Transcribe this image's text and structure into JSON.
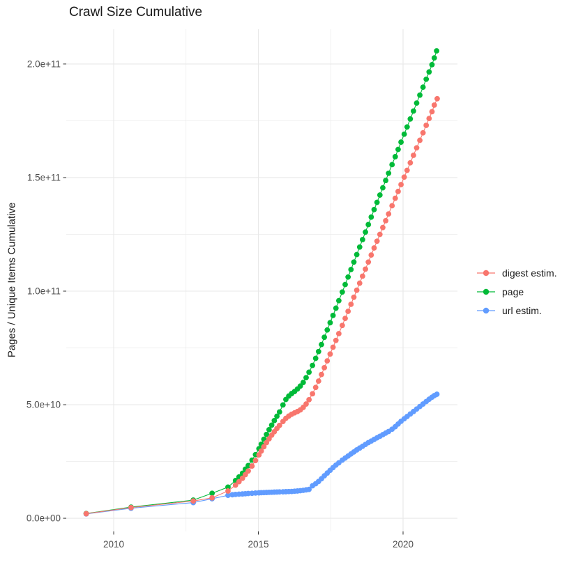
{
  "title": "Crawl Size Cumulative",
  "colors": {
    "digest": "#F8766D",
    "page": "#00BA38",
    "url": "#619CFF",
    "grid": "#E8E8E8",
    "tick_text": "#4D4D4D",
    "tick_mark": "#333333",
    "title_text": "#1a1a1a",
    "background": "#FFFFFF"
  },
  "legend": {
    "items": [
      {
        "label": "digest estim.",
        "color": "#F8766D"
      },
      {
        "label": "page",
        "color": "#00BA38"
      },
      {
        "label": "url estim.",
        "color": "#619CFF"
      }
    ]
  },
  "chart_data": {
    "type": "scatter",
    "title": "Crawl Size Cumulative",
    "xlabel": "",
    "ylabel": "Pages / Unique Items Cumulative",
    "x_unit": "year",
    "y_unit": "pages / unique items, values in billions (×1e9)",
    "grid": true,
    "legend_position": "right",
    "xlim": [
      2008.36,
      2021.88
    ],
    "ylim_e9": [
      -5.8,
      215.3
    ],
    "x_ticks": {
      "values": [
        2010,
        2015,
        2020
      ],
      "labels": [
        "2010",
        "2015",
        "2020"
      ]
    },
    "x_minor_ticks": [
      2012.5,
      2017.5
    ],
    "y_ticks": {
      "values": [
        0,
        50,
        100,
        150,
        200
      ],
      "labels": [
        "0.0e+00",
        "5.0e+10",
        "1.0e+11",
        "1.5e+11",
        "2.0e+11"
      ]
    },
    "y_minor_ticks": [
      25,
      75,
      125,
      175
    ],
    "series": [
      {
        "name": "digest estim.",
        "color": "#F8766D",
        "points": [
          [
            2009.05,
            2.0
          ],
          [
            2010.6,
            4.7
          ],
          [
            2012.75,
            7.6
          ],
          [
            2013.4,
            9.0
          ],
          [
            2013.95,
            12.0
          ],
          [
            2014.21,
            14.6
          ],
          [
            2014.33,
            16.1
          ],
          [
            2014.45,
            17.6
          ],
          [
            2014.55,
            19.2
          ],
          [
            2014.65,
            20.8
          ],
          [
            2014.78,
            23.0
          ],
          [
            2014.9,
            25.4
          ],
          [
            2015.02,
            27.9
          ],
          [
            2015.1,
            29.6
          ],
          [
            2015.19,
            31.5
          ],
          [
            2015.28,
            33.3
          ],
          [
            2015.37,
            35.0
          ],
          [
            2015.46,
            36.6
          ],
          [
            2015.55,
            38.1
          ],
          [
            2015.64,
            39.5
          ],
          [
            2015.73,
            40.9
          ],
          [
            2015.85,
            42.6
          ],
          [
            2015.95,
            44.0
          ],
          [
            2016.05,
            45.0
          ],
          [
            2016.15,
            45.8
          ],
          [
            2016.25,
            46.4
          ],
          [
            2016.35,
            47.0
          ],
          [
            2016.45,
            47.7
          ],
          [
            2016.55,
            48.8
          ],
          [
            2016.65,
            50.3
          ],
          [
            2016.75,
            52.2
          ],
          [
            2016.87,
            54.8
          ],
          [
            2016.98,
            57.6
          ],
          [
            2017.08,
            60.4
          ],
          [
            2017.18,
            63.3
          ],
          [
            2017.28,
            66.3
          ],
          [
            2017.38,
            69.3
          ],
          [
            2017.48,
            72.3
          ],
          [
            2017.58,
            75.3
          ],
          [
            2017.68,
            78.3
          ],
          [
            2017.78,
            81.3
          ],
          [
            2017.9,
            84.9
          ],
          [
            2018.0,
            88.0
          ],
          [
            2018.1,
            91.1
          ],
          [
            2018.2,
            94.2
          ],
          [
            2018.3,
            97.3
          ],
          [
            2018.4,
            100.4
          ],
          [
            2018.5,
            103.5
          ],
          [
            2018.6,
            106.6
          ],
          [
            2018.7,
            109.7
          ],
          [
            2018.8,
            112.8
          ],
          [
            2018.9,
            115.9
          ],
          [
            2019.0,
            119.0
          ],
          [
            2019.1,
            122.0
          ],
          [
            2019.2,
            125.0
          ],
          [
            2019.3,
            128.0
          ],
          [
            2019.4,
            131.0
          ],
          [
            2019.5,
            134.0
          ],
          [
            2019.62,
            137.6
          ],
          [
            2019.73,
            140.9
          ],
          [
            2019.83,
            143.9
          ],
          [
            2019.93,
            146.9
          ],
          [
            2020.04,
            150.2
          ],
          [
            2020.14,
            153.2
          ],
          [
            2020.25,
            156.5
          ],
          [
            2020.36,
            159.8
          ],
          [
            2020.47,
            163.1
          ],
          [
            2020.58,
            166.4
          ],
          [
            2020.69,
            169.7
          ],
          [
            2020.8,
            173.0
          ],
          [
            2020.9,
            176.0
          ],
          [
            2021.0,
            179.0
          ],
          [
            2021.08,
            181.9
          ],
          [
            2021.18,
            184.7
          ]
        ]
      },
      {
        "name": "page",
        "color": "#00BA38",
        "points": [
          [
            2009.05,
            2.1
          ],
          [
            2010.6,
            4.9
          ],
          [
            2012.75,
            8.0
          ],
          [
            2013.4,
            11.0
          ],
          [
            2013.95,
            13.7
          ],
          [
            2014.21,
            16.6
          ],
          [
            2014.33,
            18.2
          ],
          [
            2014.45,
            19.8
          ],
          [
            2014.55,
            21.6
          ],
          [
            2014.65,
            23.2
          ],
          [
            2014.78,
            25.6
          ],
          [
            2014.9,
            28.0
          ],
          [
            2015.02,
            30.6
          ],
          [
            2015.1,
            32.6
          ],
          [
            2015.19,
            34.8
          ],
          [
            2015.28,
            36.9
          ],
          [
            2015.37,
            39.0
          ],
          [
            2015.46,
            41.0
          ],
          [
            2015.55,
            43.0
          ],
          [
            2015.64,
            44.9
          ],
          [
            2015.73,
            46.8
          ],
          [
            2015.85,
            49.9
          ],
          [
            2015.95,
            52.3
          ],
          [
            2016.05,
            53.8
          ],
          [
            2016.15,
            54.9
          ],
          [
            2016.25,
            55.8
          ],
          [
            2016.35,
            56.9
          ],
          [
            2016.45,
            58.2
          ],
          [
            2016.55,
            59.8
          ],
          [
            2016.65,
            61.9
          ],
          [
            2016.75,
            64.3
          ],
          [
            2016.87,
            67.3
          ],
          [
            2016.98,
            70.4
          ],
          [
            2017.08,
            73.4
          ],
          [
            2017.18,
            76.5
          ],
          [
            2017.28,
            79.7
          ],
          [
            2017.38,
            82.9
          ],
          [
            2017.48,
            86.1
          ],
          [
            2017.58,
            89.3
          ],
          [
            2017.68,
            92.5
          ],
          [
            2017.78,
            95.8
          ],
          [
            2017.9,
            99.6
          ],
          [
            2018.0,
            102.9
          ],
          [
            2018.1,
            106.2
          ],
          [
            2018.2,
            109.5
          ],
          [
            2018.3,
            112.8
          ],
          [
            2018.4,
            116.1
          ],
          [
            2018.5,
            119.4
          ],
          [
            2018.6,
            122.7
          ],
          [
            2018.7,
            126.0
          ],
          [
            2018.8,
            129.3
          ],
          [
            2018.9,
            132.6
          ],
          [
            2019.0,
            135.9
          ],
          [
            2019.1,
            139.1
          ],
          [
            2019.2,
            142.3
          ],
          [
            2019.3,
            145.5
          ],
          [
            2019.4,
            148.7
          ],
          [
            2019.5,
            151.9
          ],
          [
            2019.62,
            155.7
          ],
          [
            2019.73,
            159.2
          ],
          [
            2019.83,
            162.4
          ],
          [
            2019.93,
            165.6
          ],
          [
            2020.04,
            169.1
          ],
          [
            2020.14,
            172.3
          ],
          [
            2020.25,
            175.8
          ],
          [
            2020.36,
            179.3
          ],
          [
            2020.47,
            182.8
          ],
          [
            2020.58,
            186.3
          ],
          [
            2020.69,
            189.8
          ],
          [
            2020.8,
            193.3
          ],
          [
            2020.9,
            196.5
          ],
          [
            2021.0,
            199.7
          ],
          [
            2021.08,
            202.7
          ],
          [
            2021.16,
            205.8
          ]
        ]
      },
      {
        "name": "url estim.",
        "color": "#619CFF",
        "points": [
          [
            2009.05,
            1.9
          ],
          [
            2010.6,
            4.4
          ],
          [
            2012.75,
            6.9
          ],
          [
            2013.4,
            8.6
          ],
          [
            2013.95,
            10.1
          ],
          [
            2014.1,
            10.35
          ],
          [
            2014.21,
            10.5
          ],
          [
            2014.33,
            10.6
          ],
          [
            2014.45,
            10.7
          ],
          [
            2014.55,
            10.8
          ],
          [
            2014.65,
            10.9
          ],
          [
            2014.78,
            11.0
          ],
          [
            2014.9,
            11.1
          ],
          [
            2015.02,
            11.2
          ],
          [
            2015.1,
            11.25
          ],
          [
            2015.19,
            11.3
          ],
          [
            2015.28,
            11.35
          ],
          [
            2015.37,
            11.4
          ],
          [
            2015.46,
            11.45
          ],
          [
            2015.55,
            11.5
          ],
          [
            2015.64,
            11.55
          ],
          [
            2015.73,
            11.6
          ],
          [
            2015.85,
            11.65
          ],
          [
            2015.95,
            11.7
          ],
          [
            2016.05,
            11.75
          ],
          [
            2016.15,
            11.8
          ],
          [
            2016.25,
            11.9
          ],
          [
            2016.35,
            12.0
          ],
          [
            2016.45,
            12.15
          ],
          [
            2016.55,
            12.3
          ],
          [
            2016.65,
            12.5
          ],
          [
            2016.75,
            12.7
          ],
          [
            2016.87,
            14.3
          ],
          [
            2016.98,
            15.2
          ],
          [
            2017.08,
            16.2
          ],
          [
            2017.18,
            17.4
          ],
          [
            2017.28,
            18.7
          ],
          [
            2017.38,
            19.9
          ],
          [
            2017.48,
            21.1
          ],
          [
            2017.58,
            22.3
          ],
          [
            2017.68,
            23.4
          ],
          [
            2017.78,
            24.4
          ],
          [
            2017.9,
            25.6
          ],
          [
            2018.0,
            26.5
          ],
          [
            2018.1,
            27.4
          ],
          [
            2018.2,
            28.3
          ],
          [
            2018.3,
            29.2
          ],
          [
            2018.4,
            30.1
          ],
          [
            2018.5,
            30.9
          ],
          [
            2018.6,
            31.7
          ],
          [
            2018.7,
            32.5
          ],
          [
            2018.8,
            33.3
          ],
          [
            2018.9,
            34.0
          ],
          [
            2019.0,
            34.7
          ],
          [
            2019.1,
            35.4
          ],
          [
            2019.2,
            36.1
          ],
          [
            2019.3,
            36.8
          ],
          [
            2019.4,
            37.5
          ],
          [
            2019.5,
            38.2
          ],
          [
            2019.62,
            39.2
          ],
          [
            2019.73,
            40.3
          ],
          [
            2019.83,
            41.5
          ],
          [
            2019.93,
            42.7
          ],
          [
            2020.04,
            43.8
          ],
          [
            2020.14,
            44.8
          ],
          [
            2020.25,
            45.9
          ],
          [
            2020.36,
            47.0
          ],
          [
            2020.47,
            48.1
          ],
          [
            2020.58,
            49.2
          ],
          [
            2020.69,
            50.3
          ],
          [
            2020.8,
            51.4
          ],
          [
            2020.9,
            52.4
          ],
          [
            2021.0,
            53.3
          ],
          [
            2021.08,
            54.0
          ],
          [
            2021.17,
            54.6
          ]
        ]
      }
    ]
  }
}
